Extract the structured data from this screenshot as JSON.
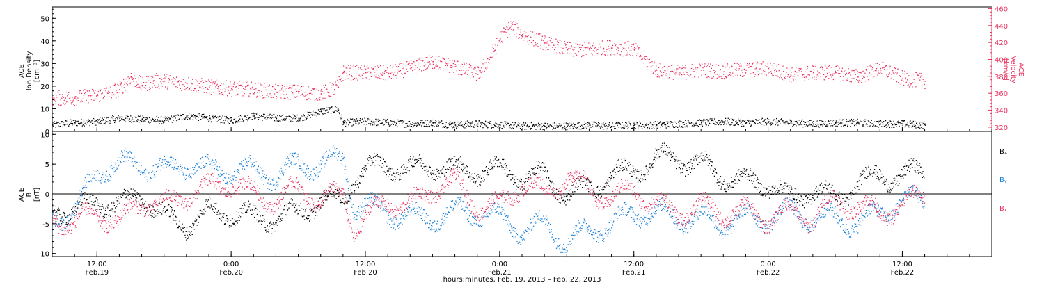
{
  "colors": {
    "black": "#000000",
    "red": "#e8335f",
    "blue": "#1a7fd8",
    "axis_right": "#e8335f"
  },
  "xaxis": {
    "caption": "hours:minutes, Feb. 19, 2013 – Feb. 22, 2013",
    "start_hours": 8,
    "end_hours": 92,
    "major_ticks": [
      {
        "hours": 12,
        "time": "12:00",
        "date": "Feb.19"
      },
      {
        "hours": 24,
        "time": "0:00",
        "date": "Feb.20"
      },
      {
        "hours": 36,
        "time": "12:00",
        "date": "Feb.20"
      },
      {
        "hours": 48,
        "time": "0:00",
        "date": "Feb.21"
      },
      {
        "hours": 60,
        "time": "12:00",
        "date": "Feb.21"
      },
      {
        "hours": 72,
        "time": "0:00",
        "date": "Feb.22"
      },
      {
        "hours": 84,
        "time": "12:00",
        "date": "Feb.22"
      }
    ]
  },
  "panels": {
    "plasma": {
      "left_title": [
        "ACE",
        "Ion Density",
        "[cm⁻³]"
      ],
      "right_title": [
        "ACE",
        "Velocity",
        "[km/s]"
      ],
      "left_ylim": [
        0,
        55
      ],
      "right_ylim": [
        315,
        462
      ],
      "left_ticks": [
        0,
        10,
        20,
        30,
        40,
        50
      ],
      "right_ticks": [
        320,
        340,
        360,
        380,
        400,
        420,
        440,
        460
      ]
    },
    "magnetic": {
      "left_title": [
        "ACE",
        "B",
        "[nT]"
      ],
      "ylim": [
        -10.5,
        10.5
      ],
      "ticks": [
        -10,
        -5,
        0,
        5,
        10
      ],
      "zero_line": true,
      "legend": [
        {
          "label": "Bₓ",
          "color": "#000000"
        },
        {
          "label": "Bᵧ",
          "color": "#1a7fd8"
        },
        {
          "label": "Bᵪ",
          "color": "#e8335f"
        }
      ]
    }
  },
  "chart_data": [
    {
      "type": "scatter",
      "panel": "plasma",
      "x_unit": "hours since Feb.19 00:00",
      "series": [
        {
          "name": "Ion Density",
          "axis": "left",
          "color": "#000000",
          "x": [
            8,
            10,
            12,
            14,
            16,
            18,
            20,
            22,
            24,
            26,
            28,
            30,
            32,
            33.5,
            34,
            36,
            38,
            40,
            42,
            44,
            46,
            48,
            50,
            52,
            54,
            56,
            58,
            60,
            62,
            64,
            66,
            68,
            70,
            72,
            74,
            76,
            78,
            80,
            82,
            84,
            86
          ],
          "y": [
            3,
            4,
            4.5,
            6,
            5.5,
            5,
            7,
            6,
            5,
            7,
            6,
            6,
            9,
            10,
            4,
            4.5,
            4,
            3.5,
            4,
            3,
            3.5,
            3,
            2.5,
            2.5,
            2.5,
            3,
            2.5,
            3,
            3,
            3.5,
            4,
            4.5,
            4,
            4.5,
            4,
            3.5,
            4,
            4,
            3.5,
            3.5,
            3
          ]
        },
        {
          "name": "Velocity",
          "axis": "right",
          "color": "#e8335f",
          "x": [
            8,
            10,
            12,
            14,
            15,
            16,
            17,
            18,
            20,
            22,
            24,
            26,
            28,
            30,
            32,
            33.5,
            34,
            36,
            38,
            40,
            42,
            44,
            46,
            47,
            48,
            49,
            50,
            52,
            54,
            56,
            58,
            60,
            62,
            64,
            66,
            68,
            70,
            72,
            74,
            76,
            78,
            80,
            82,
            84,
            86
          ],
          "y": [
            355,
            355,
            358,
            365,
            380,
            370,
            375,
            375,
            372,
            368,
            366,
            365,
            362,
            362,
            360,
            368,
            385,
            385,
            384,
            390,
            398,
            392,
            383,
            400,
            425,
            440,
            430,
            420,
            412,
            412,
            415,
            412,
            388,
            385,
            388,
            386,
            388,
            390,
            382,
            385,
            385,
            380,
            390,
            378,
            375
          ]
        }
      ]
    },
    {
      "type": "scatter",
      "panel": "magnetic",
      "x_unit": "hours since Feb.19 00:00",
      "series": [
        {
          "name": "Bx",
          "color": "#000000",
          "x": [
            8,
            10,
            12,
            14,
            16,
            18,
            20,
            22,
            24,
            26,
            28,
            30,
            32,
            34,
            35,
            36,
            38,
            40,
            42,
            44,
            46,
            48,
            50,
            52,
            54,
            56,
            58,
            60,
            62,
            64,
            66,
            68,
            70,
            72,
            74,
            76,
            78,
            80,
            82,
            84,
            86
          ],
          "y": [
            -2,
            -3,
            -1,
            -2,
            0,
            -4,
            -5,
            -3,
            -3,
            -4,
            -4,
            -3,
            -1,
            -1,
            3,
            4,
            5,
            4,
            5,
            4,
            4,
            4,
            3,
            3,
            0,
            1,
            3,
            4,
            6,
            6,
            5,
            3,
            2,
            2,
            -1,
            1,
            -1,
            2,
            3,
            3,
            4
          ]
        },
        {
          "name": "By",
          "color": "#1a7fd8",
          "x": [
            8,
            10,
            12,
            14,
            16,
            18,
            20,
            22,
            24,
            26,
            28,
            30,
            32,
            34,
            35,
            36,
            38,
            40,
            42,
            44,
            46,
            48,
            50,
            52,
            54,
            56,
            58,
            60,
            62,
            64,
            66,
            68,
            70,
            72,
            74,
            76,
            78,
            80,
            82,
            84,
            86
          ],
          "y": [
            -4,
            -3,
            4,
            5,
            5,
            4,
            5,
            4,
            4,
            4,
            3,
            5,
            5,
            6,
            -2,
            -2,
            -3,
            -4,
            -4,
            -3,
            -3,
            -4,
            -6,
            -5,
            -8,
            -6,
            -5,
            -3,
            -3,
            -4,
            -4,
            -5,
            -4,
            -4,
            -3,
            -4,
            -4,
            -5,
            -3,
            -1,
            -1
          ]
        },
        {
          "name": "Bz",
          "color": "#e8335f",
          "x": [
            8,
            10,
            12,
            14,
            16,
            18,
            20,
            22,
            24,
            26,
            28,
            30,
            32,
            34,
            35,
            36,
            38,
            40,
            42,
            44,
            46,
            48,
            50,
            52,
            54,
            56,
            58,
            60,
            62,
            64,
            66,
            68,
            70,
            72,
            74,
            76,
            78,
            80,
            82,
            84,
            86
          ],
          "y": [
            -4,
            -5,
            -3,
            -5,
            -1,
            -2,
            0,
            1,
            2,
            0,
            -1,
            1,
            -1,
            0,
            -6,
            -4,
            -1,
            -2,
            1,
            2,
            -2,
            -2,
            2,
            0,
            3,
            1,
            -1,
            1,
            -2,
            -3,
            -2,
            -3,
            -3,
            -4,
            -3,
            -4,
            -1,
            -2,
            -3,
            -2,
            0
          ]
        }
      ]
    }
  ]
}
